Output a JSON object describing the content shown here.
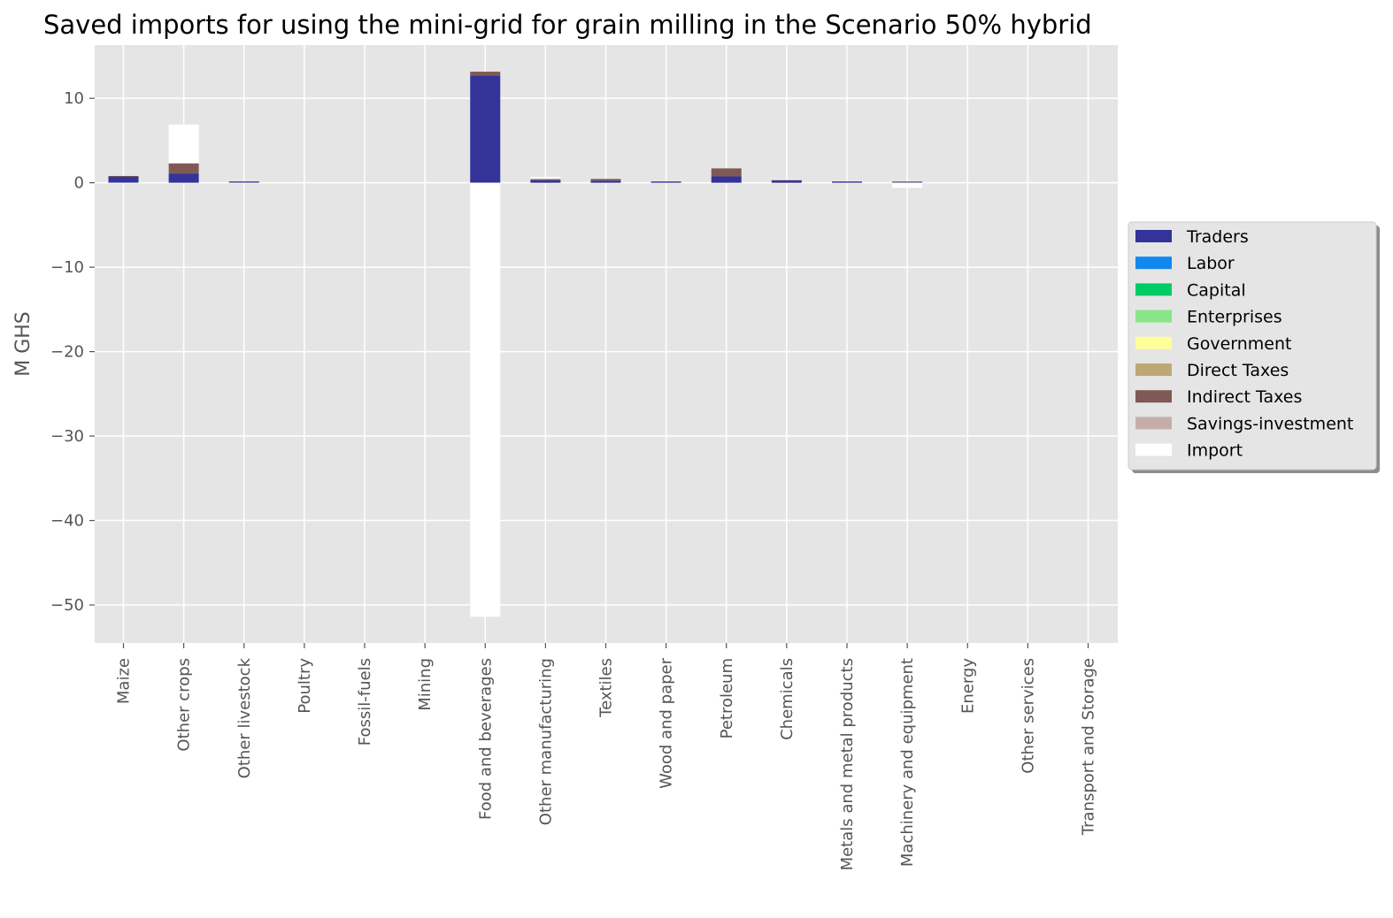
{
  "chart_data": {
    "type": "bar",
    "stacked": true,
    "title": "Saved imports for using the mini-grid for grain milling in the Scenario 50% hybrid",
    "xlabel": "",
    "ylabel": "M GHS",
    "ylim": [
      -54.5,
      16.3
    ],
    "yticks": [
      10,
      0,
      -10,
      -20,
      -30,
      -40,
      -50
    ],
    "ytick_labels": [
      "10",
      "0",
      "−10",
      "−20",
      "−30",
      "−40",
      "−50"
    ],
    "grid": true,
    "legend_position": "right",
    "categories": [
      "Maize",
      "Other crops",
      "Other livestock",
      "Poultry",
      "Fossil-fuels",
      "Mining",
      "Food and beverages",
      "Other manufacturing",
      "Textiles",
      "Wood and paper",
      "Petroleum",
      "Chemicals",
      "Metals and metal products",
      "Machinery and equipment",
      "Energy",
      "Other services",
      "Transport and Storage"
    ],
    "series": [
      {
        "name": "Traders",
        "color": "#333399",
        "values": [
          0.75,
          1.1,
          0.15,
          0,
          0,
          0,
          12.7,
          0.3,
          0.25,
          0.15,
          0.75,
          0.3,
          0.15,
          0.05,
          0,
          0,
          0
        ]
      },
      {
        "name": "Labor",
        "color": "#1188ee",
        "values": [
          0,
          0,
          0,
          0,
          0,
          0,
          0,
          0,
          0,
          0,
          0,
          0,
          0,
          0,
          0,
          0,
          0
        ]
      },
      {
        "name": "Capital",
        "color": "#00cc66",
        "values": [
          0,
          0,
          0,
          0,
          0,
          0,
          0,
          0,
          0,
          0,
          0,
          0,
          0,
          0,
          0,
          0,
          0
        ]
      },
      {
        "name": "Enterprises",
        "color": "#88e688",
        "values": [
          0,
          0,
          0,
          0,
          0,
          0,
          0,
          0,
          0,
          0,
          0,
          0,
          0,
          0,
          0,
          0,
          0
        ]
      },
      {
        "name": "Government",
        "color": "#ffff99",
        "values": [
          0,
          0,
          0,
          0,
          0,
          0,
          0,
          0,
          0,
          0,
          0,
          0,
          0,
          0,
          0,
          0,
          0
        ]
      },
      {
        "name": "Direct Taxes",
        "color": "#bda874",
        "values": [
          0,
          0,
          0,
          0,
          0,
          0,
          0,
          0,
          0,
          0,
          0,
          0,
          0,
          0,
          0,
          0,
          0
        ]
      },
      {
        "name": "Indirect Taxes",
        "color": "#7f5a55",
        "values": [
          0.05,
          1.2,
          0,
          0,
          0,
          0,
          0.45,
          0.15,
          0.2,
          0,
          0.95,
          0.05,
          0,
          0.1,
          0,
          0,
          0
        ]
      },
      {
        "name": "Savings-investment",
        "color": "#c5aeaa",
        "values": [
          0,
          0,
          0,
          0,
          0,
          0,
          0,
          0,
          0,
          0,
          0,
          0,
          0,
          0,
          0,
          0,
          0
        ]
      },
      {
        "name": "Import",
        "color": "#ffffff",
        "values": [
          -0.1,
          4.6,
          -0.05,
          0,
          0,
          0,
          -51.4,
          0.25,
          0,
          0,
          0,
          0.05,
          0,
          -0.6,
          0,
          0,
          0
        ]
      }
    ]
  }
}
